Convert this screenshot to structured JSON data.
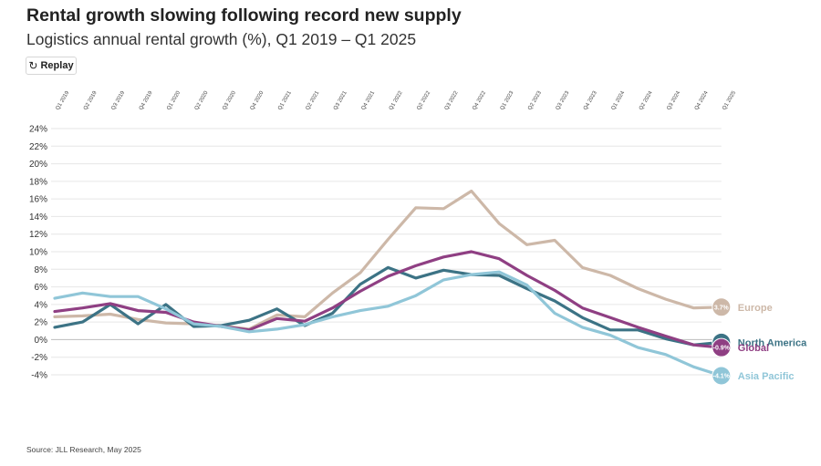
{
  "header": {
    "title": "Rental growth slowing following record new supply",
    "subtitle": "Logistics annual rental growth (%), Q1 2019 – Q1 2025"
  },
  "replay_button": {
    "label": "Replay",
    "icon": "replay-icon"
  },
  "footer": {
    "source": "Source: JLL Research, May 2025"
  },
  "chart_data": {
    "type": "line",
    "title": "Rental growth slowing following record new supply",
    "subtitle": "Logistics annual rental growth (%), Q1 2019 – Q1 2025",
    "categories": [
      "Q1 2019",
      "Q2 2019",
      "Q3 2019",
      "Q4 2019",
      "Q1 2020",
      "Q2 2020",
      "Q3 2020",
      "Q4 2020",
      "Q1 2021",
      "Q2 2021",
      "Q3 2021",
      "Q4 2021",
      "Q1 2022",
      "Q2 2022",
      "Q3 2022",
      "Q4 2022",
      "Q1 2023",
      "Q2 2023",
      "Q3 2023",
      "Q4 2023",
      "Q1 2024",
      "Q2 2024",
      "Q3 2024",
      "Q4 2024",
      "Q1 2025"
    ],
    "y_ticks": [
      "24%",
      "22%",
      "20%",
      "18%",
      "16%",
      "14%",
      "12%",
      "10%",
      "8%",
      "6%",
      "4%",
      "2%",
      "0%",
      "-2%",
      "-4%"
    ],
    "ylim": [
      -4,
      24
    ],
    "grid": true,
    "legend": "end-of-line labels",
    "series": [
      {
        "name": "Europe",
        "color": "#cdb8a8",
        "end_label": "3.7%",
        "values": [
          2.6,
          2.7,
          2.9,
          2.3,
          1.9,
          1.8,
          1.6,
          1.2,
          2.8,
          2.6,
          5.3,
          7.6,
          11.4,
          15.0,
          14.9,
          16.9,
          13.2,
          10.8,
          11.3,
          8.2,
          7.3,
          5.8,
          4.6,
          3.6,
          3.7
        ]
      },
      {
        "name": "North America",
        "color": "#3c7385",
        "end_label": "",
        "values": [
          1.4,
          2.0,
          4.0,
          1.8,
          4.0,
          1.5,
          1.6,
          2.2,
          3.5,
          1.6,
          3.0,
          6.3,
          8.2,
          7.0,
          7.9,
          7.4,
          7.3,
          5.8,
          4.4,
          2.5,
          1.1,
          1.1,
          0.1,
          -0.6,
          -0.3
        ]
      },
      {
        "name": "Global",
        "color": "#8f3f83",
        "end_label": "-0.9%",
        "values": [
          3.2,
          3.6,
          4.1,
          3.3,
          3.1,
          2.0,
          1.5,
          1.1,
          2.4,
          2.1,
          3.6,
          5.5,
          7.2,
          8.4,
          9.4,
          10.0,
          9.2,
          7.3,
          5.6,
          3.6,
          2.5,
          1.4,
          0.4,
          -0.6,
          -0.9
        ]
      },
      {
        "name": "Asia Pacific",
        "color": "#90c6d8",
        "end_label": "-4.1%",
        "values": [
          4.7,
          5.3,
          4.9,
          4.9,
          3.5,
          1.8,
          1.5,
          0.9,
          1.2,
          1.7,
          2.6,
          3.3,
          3.8,
          5.0,
          6.8,
          7.4,
          7.7,
          6.2,
          3.0,
          1.4,
          0.5,
          -0.9,
          -1.7,
          -3.1,
          -4.1
        ]
      }
    ]
  }
}
